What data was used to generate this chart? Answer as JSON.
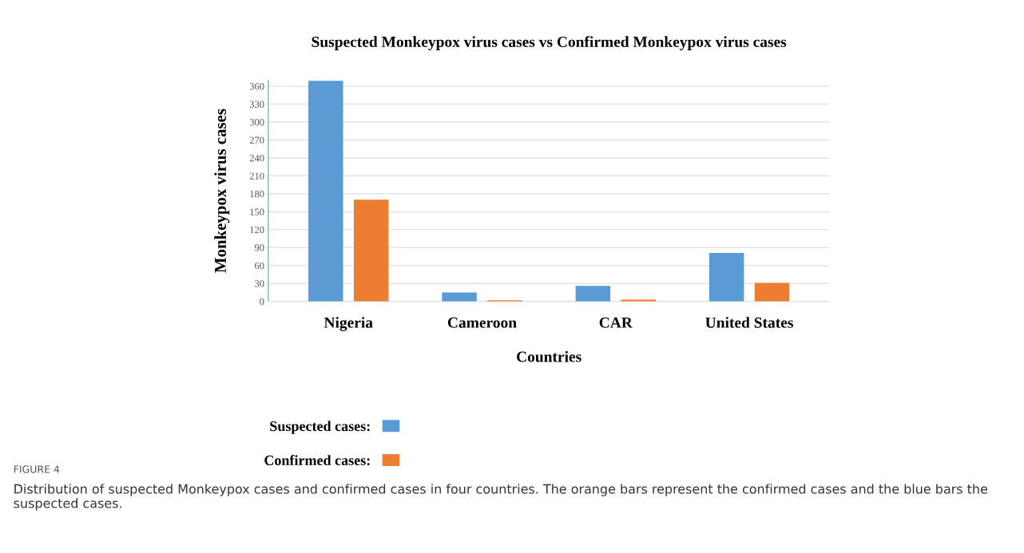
{
  "chart_data": {
    "type": "bar",
    "title": "Suspected Monkeypox virus cases vs Confirmed Monkeypox virus cases",
    "xlabel": "Countries",
    "ylabel": "Monkeypox virus cases",
    "categories": [
      "Nigeria",
      "Cameroon",
      "CAR",
      "United States"
    ],
    "series": [
      {
        "name": "Suspected cases:",
        "color": "#5b9bd5",
        "values": [
          369,
          15,
          26,
          81
        ]
      },
      {
        "name": "Confirmed cases:",
        "color": "#ed7d31",
        "values": [
          170,
          2,
          3,
          31
        ]
      }
    ],
    "ylim": [
      0,
      370
    ],
    "yticks": [
      0,
      30,
      60,
      90,
      120,
      150,
      180,
      210,
      240,
      270,
      300,
      330,
      360
    ],
    "grid": "y",
    "legend": "bottom left",
    "annotations": [
      "FIGURE 4",
      "Distribution of suspected Monkeypox cases and confirmed cases in four countries. The orange bars represent the confirmed cases and the blue bars the suspected cases."
    ]
  }
}
